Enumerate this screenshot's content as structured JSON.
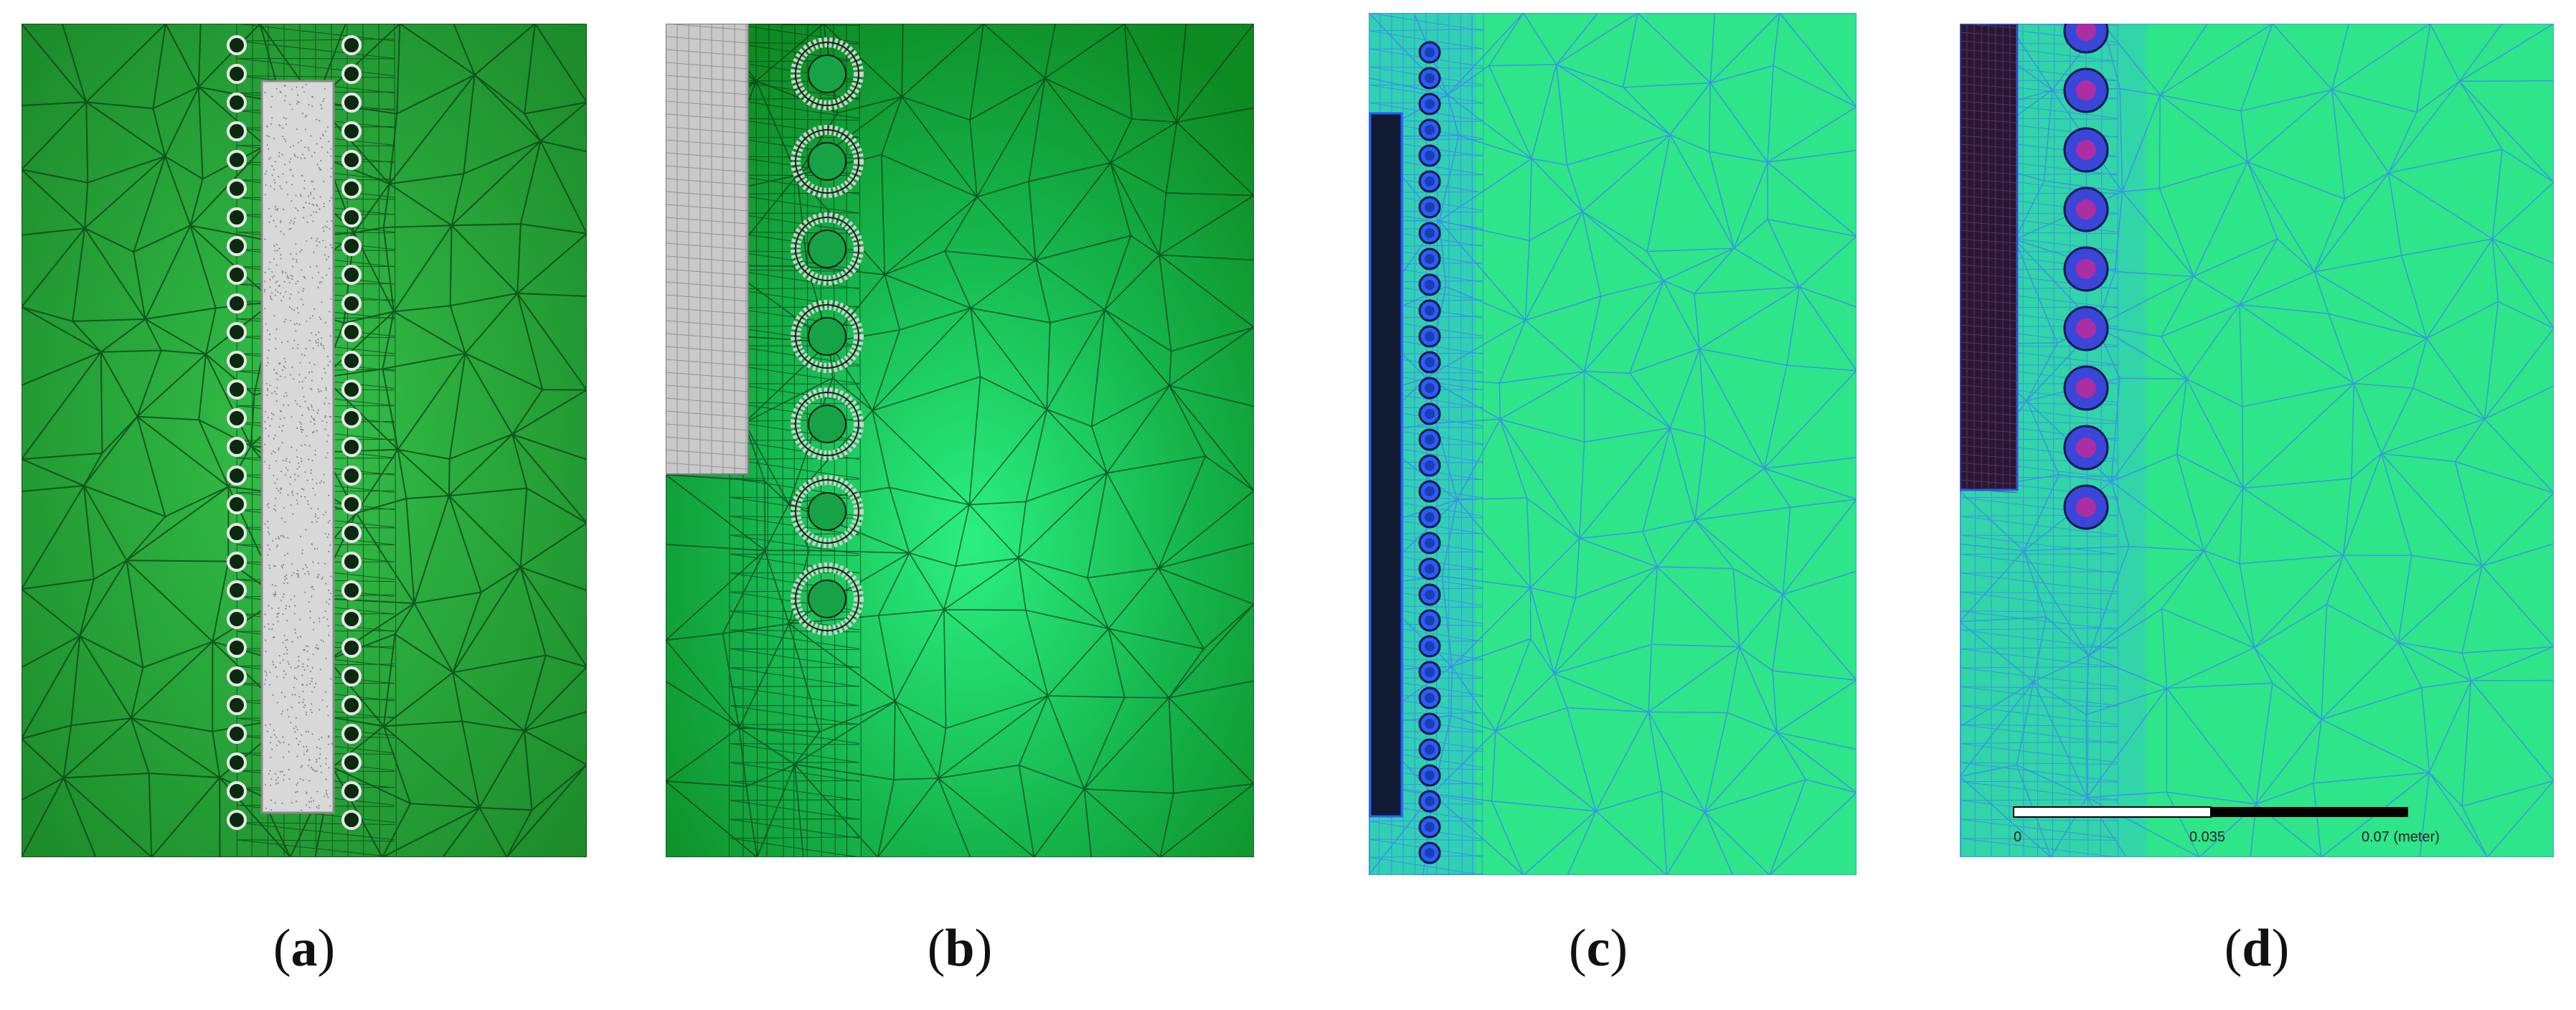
{
  "captions": {
    "a": "a",
    "b": "b",
    "c": "c",
    "d": "d"
  },
  "scale_bar": {
    "tick_0": "0",
    "tick_mid": "0.035",
    "tick_end": "0.07 (meter)"
  },
  "colors": {
    "mesh_green_dark": "#1f8f2a",
    "mesh_green_light": "#33cc55",
    "panel_cd_background": "#2ee58a",
    "mesh_blue": "#2f6dff",
    "electrode_dark": "#101830"
  }
}
